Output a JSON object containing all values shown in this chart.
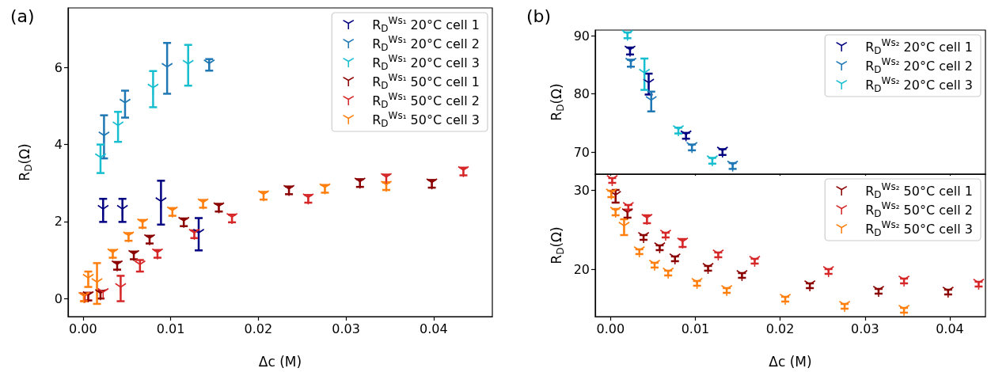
{
  "chart_data": [
    {
      "type": "scatter",
      "title": "(a)",
      "xlabel": "Δc (M)",
      "ylabel": "R$_{D}$(Ω)",
      "xlim": [
        -0.0017,
        0.0467
      ],
      "ylim": [
        -0.47,
        7.55
      ],
      "xticks": [
        {
          "value": 0,
          "label": "0.00"
        },
        {
          "value": 0.01,
          "label": "0.01"
        },
        {
          "value": 0.02,
          "label": "0.02"
        },
        {
          "value": 0.03,
          "label": "0.03"
        },
        {
          "value": 0.04,
          "label": "0.04"
        }
      ],
      "yticks": [
        0,
        2,
        4,
        6
      ],
      "grid": false,
      "marker": "triangle",
      "legend": "top right",
      "series": [
        {
          "name": "R$_{D}$$^{Ws₁}$ 20°C cell 1",
          "color": "#000080",
          "x": [
            0.0023,
            0.0045,
            0.0089,
            0.0132
          ],
          "values": [
            2.29,
            2.29,
            2.49,
            1.67
          ],
          "errors": [
            0.3,
            0.3,
            0.57,
            0.42
          ]
        },
        {
          "name": "R$_{D}$$^{Ws₁}$ 20°C cell 2",
          "color": "#1f77b4",
          "x": [
            0.0024,
            0.0048,
            0.0096,
            0.0144
          ],
          "values": [
            4.2,
            5.05,
            5.98,
            6.07
          ],
          "errors": [
            0.56,
            0.35,
            0.66,
            0.15
          ]
        },
        {
          "name": "R$_{D}$$^{Ws₁}$ 20°C cell 3",
          "color": "#17becf",
          "x": [
            0.002,
            0.004,
            0.008,
            0.012
          ],
          "values": [
            3.63,
            4.46,
            5.44,
            6.06
          ],
          "errors": [
            0.37,
            0.39,
            0.47,
            0.53
          ]
        },
        {
          "name": "R$_{D}$$^{Ws₁}$ 50°C cell 1",
          "color": "#8b0000",
          "x": [
            0.0006,
            0.002,
            0.0039,
            0.0058,
            0.0076,
            0.0115,
            0.0155,
            0.0235,
            0.0316,
            0.0398
          ],
          "values": [
            0.05,
            0.1,
            0.85,
            1.12,
            1.53,
            1.98,
            2.36,
            2.81,
            3.0,
            2.98
          ],
          "errors": [
            0.1,
            0.1,
            0.1,
            0.1,
            0.1,
            0.1,
            0.1,
            0.1,
            0.1,
            0.1
          ]
        },
        {
          "name": "R$_{D}$$^{Ws₁}$ 50°C cell 2",
          "color": "#d62728",
          "x": [
            0.0002,
            0.0023,
            0.0043,
            0.0065,
            0.0085,
            0.0127,
            0.017,
            0.0257,
            0.0346,
            0.0434
          ],
          "values": [
            0.03,
            0.13,
            0.26,
            0.85,
            1.16,
            1.67,
            2.08,
            2.59,
            3.12,
            3.3
          ],
          "errors": [
            0.1,
            null,
            0.33,
            0.15,
            0.1,
            0.1,
            0.1,
            0.1,
            0.1,
            0.1
          ]
        },
        {
          "name": "R$_{D}$$^{Ws₁}$ 50°C cell 3",
          "color": "#ff7f0e",
          "x": [
            0.0001,
            0.0006,
            0.0016,
            0.0034,
            0.0052,
            0.0068,
            0.0102,
            0.0137,
            0.0206,
            0.0276,
            0.0346
          ],
          "values": [
            0.03,
            0.5,
            0.39,
            1.16,
            1.6,
            1.94,
            2.25,
            2.46,
            2.67,
            2.85,
            2.92
          ],
          "errors": [
            0.1,
            0.2,
            0.53,
            0.1,
            0.1,
            0.1,
            0.1,
            0.1,
            0.1,
            0.1,
            0.1
          ]
        }
      ]
    },
    {
      "type": "scatter",
      "title": "(b)",
      "ylabel": "R$_{D}$(Ω)",
      "xlim": [
        -0.0018,
        0.0442
      ],
      "ylim": [
        66.2,
        91
      ],
      "xticks": [
        {
          "value": 0,
          "label": null
        },
        {
          "value": 0.01,
          "label": null
        },
        {
          "value": 0.02,
          "label": null
        },
        {
          "value": 0.03,
          "label": null
        },
        {
          "value": 0.04,
          "label": null
        }
      ],
      "yticks": [
        70,
        80,
        90
      ],
      "tick_labels": "y",
      "grid": false,
      "marker": "triangle",
      "legend": "top right",
      "series": [
        {
          "name": "R$_{D}$$^{Ws₂}$ 20°C cell 1",
          "color": "#000080",
          "x": [
            0.0023,
            0.0045,
            0.0089,
            0.0132
          ],
          "values": [
            87.4,
            81.7,
            72.8,
            70.0
          ],
          "errors": [
            0.6,
            1.8,
            0.5,
            0.5
          ]
        },
        {
          "name": "R$_{D}$$^{Ws₂}$ 20°C cell 2",
          "color": "#1f77b4",
          "x": [
            0.0024,
            0.0048,
            0.0096,
            0.0144
          ],
          "values": [
            85.3,
            78.7,
            70.8,
            67.6
          ],
          "errors": [
            0.6,
            1.7,
            0.5,
            0.5
          ]
        },
        {
          "name": "R$_{D}$$^{Ws₂}$ 20°C cell 3",
          "color": "#17becf",
          "x": [
            0.002,
            0.004,
            0.008,
            0.012
          ],
          "values": [
            90.1,
            83.4,
            73.7,
            68.5
          ],
          "errors": [
            0.5,
            2.7,
            0.5,
            0.5
          ]
        }
      ]
    },
    {
      "type": "scatter",
      "xlabel": "Δc (M)",
      "ylabel": "R$_{D}$(Ω)",
      "xlim": [
        -0.0018,
        0.0442
      ],
      "ylim": [
        14,
        32
      ],
      "xticks": [
        {
          "value": 0,
          "label": "0.00"
        },
        {
          "value": 0.01,
          "label": "0.01"
        },
        {
          "value": 0.02,
          "label": "0.02"
        },
        {
          "value": 0.03,
          "label": "0.03"
        },
        {
          "value": 0.04,
          "label": "0.04"
        }
      ],
      "yticks": [
        20,
        30
      ],
      "grid": false,
      "marker": "triangle",
      "legend": "top right",
      "series": [
        {
          "name": "R$_{D}$$^{Ws₂}$ 50°C cell 1",
          "color": "#8b0000",
          "x": [
            0.0006,
            0.002,
            0.0039,
            0.0058,
            0.0076,
            0.0115,
            0.0155,
            0.0235,
            0.0316,
            0.0398
          ],
          "values": [
            29.2,
            27.0,
            24.0,
            22.7,
            21.3,
            20.1,
            19.2,
            17.9,
            17.2,
            17.1
          ],
          "errors": [
            0.8,
            0.5,
            0.3,
            0.3,
            0.3,
            0.3,
            0.3,
            0.3,
            0.3,
            0.3
          ]
        },
        {
          "name": "R$_{D}$$^{Ws₂}$ 50°C cell 2",
          "color": "#d62728",
          "x": [
            0.0002,
            0.0021,
            0.0043,
            0.0065,
            0.0085,
            0.0127,
            0.017,
            0.0257,
            0.0346,
            0.0434
          ],
          "values": [
            31.2,
            27.8,
            26.3,
            24.3,
            23.3,
            21.8,
            21.0,
            19.7,
            18.5,
            18.1
          ],
          "errors": [
            0.3,
            0.3,
            0.5,
            0.3,
            0.5,
            0.3,
            0.3,
            0.3,
            0.3,
            0.3
          ]
        },
        {
          "name": "R$_{D}$$^{Ws₂}$ 50°C cell 3",
          "color": "#ff7f0e",
          "x": [
            0.0001,
            0.0006,
            0.0016,
            0.0034,
            0.0052,
            0.0068,
            0.0102,
            0.0137,
            0.0206,
            0.0276,
            0.0346
          ],
          "values": [
            29.5,
            27.2,
            25.3,
            22.2,
            20.5,
            19.5,
            18.2,
            17.3,
            16.2,
            15.3,
            14.8
          ],
          "errors": [
            0.4,
            0.4,
            1.0,
            0.3,
            0.3,
            0.3,
            0.3,
            0.3,
            0.3,
            0.3,
            0.3
          ]
        }
      ]
    }
  ]
}
